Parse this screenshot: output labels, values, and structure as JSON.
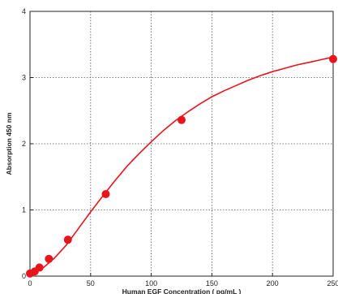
{
  "chart_data": {
    "type": "scatter",
    "title": "",
    "xlabel": "Human EGF Concentration  ( pg/mL )",
    "ylabel": "Absorption 450 nm",
    "xlim": [
      0,
      250
    ],
    "ylim": [
      0,
      4
    ],
    "x_ticks": [
      0,
      50,
      100,
      150,
      200,
      250
    ],
    "y_ticks": [
      0,
      1,
      2,
      3,
      4
    ],
    "x_tick_labels": [
      "0",
      "50",
      "100",
      "150",
      "200",
      "250"
    ],
    "y_tick_labels": [
      "0",
      "1",
      "2",
      "3",
      "4"
    ],
    "grid": true,
    "series": [
      {
        "color": "#e8141c",
        "marker": "circle",
        "points": [
          {
            "x": 0,
            "y": 0.04
          },
          {
            "x": 3.9,
            "y": 0.07
          },
          {
            "x": 7.8,
            "y": 0.13
          },
          {
            "x": 15.6,
            "y": 0.26
          },
          {
            "x": 31.25,
            "y": 0.55
          },
          {
            "x": 62.5,
            "y": 1.24
          },
          {
            "x": 125,
            "y": 2.36
          },
          {
            "x": 250,
            "y": 3.28
          }
        ]
      }
    ],
    "fit_curve": {
      "color": "#e8141c",
      "type": "4PL",
      "x": [
        0,
        10,
        20,
        30,
        40,
        50,
        60,
        70,
        80,
        90,
        100,
        110,
        120,
        130,
        140,
        150,
        160,
        170,
        180,
        190,
        200,
        210,
        220,
        230,
        240,
        250
      ],
      "y": [
        0.03,
        0.11,
        0.27,
        0.47,
        0.72,
        0.97,
        1.21,
        1.44,
        1.66,
        1.85,
        2.03,
        2.2,
        2.35,
        2.48,
        2.6,
        2.71,
        2.8,
        2.88,
        2.96,
        3.03,
        3.09,
        3.14,
        3.19,
        3.23,
        3.27,
        3.31
      ]
    }
  }
}
